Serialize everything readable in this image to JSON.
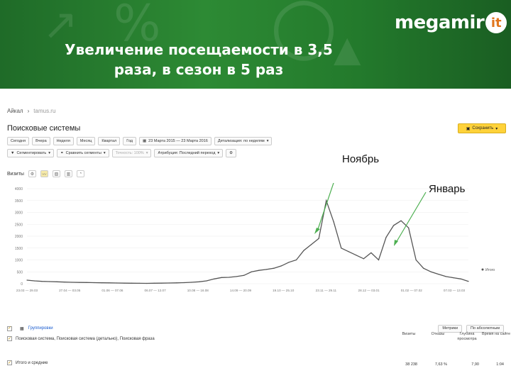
{
  "banner": {
    "title": "Увеличение посещаемости в 3,5 раза, в сезон в 5 раз",
    "logo_text": "megamir",
    "logo_suffix": "it",
    "bg_color": "#2d8a34"
  },
  "breadcrumb": {
    "item1": "Айкал",
    "item2": "tamus.ru"
  },
  "page": {
    "title": "Поисковые системы",
    "save_label": "Сохранить"
  },
  "toolbar1": {
    "periods": [
      "Сегодня",
      "Вчера",
      "Неделя",
      "Месяц",
      "Квартал",
      "Год"
    ],
    "date_range": "23 Марта 2015 — 23 Марта 2016",
    "grouping": "Детализация: по неделям"
  },
  "toolbar2": {
    "segment": "Сегментировать",
    "compare": "Сравнить сегменты",
    "accuracy": "Точность: 100%",
    "attribution": "Атрибуция: Последний переход"
  },
  "chart_header": {
    "label": "Визиты"
  },
  "chart_data": {
    "type": "line",
    "ylim": [
      0,
      4000
    ],
    "yticks": [
      "4000",
      "3500",
      "3000",
      "2500",
      "2000",
      "1500",
      "1000",
      "500",
      "0"
    ],
    "xticks": [
      "23.03 — 29.03",
      "27.04 — 03.05",
      "01.06 — 07.06",
      "06.07 — 12.07",
      "10.08 — 16.08",
      "14.09 — 20.09",
      "19.10 — 25.10",
      "23.11 — 29.11",
      "28.12 — 03.01",
      "01.02 — 07.02",
      "07.03 — 13.03"
    ],
    "series": [
      {
        "name": "Итого",
        "color": "#555555",
        "values": [
          150,
          120,
          100,
          90,
          80,
          70,
          60,
          55,
          50,
          45,
          40,
          35,
          30,
          25,
          20,
          18,
          15,
          20,
          25,
          30,
          35,
          45,
          60,
          80,
          120,
          200,
          260,
          270,
          300,
          350,
          500,
          560,
          600,
          650,
          750,
          900,
          1000,
          1400,
          1650,
          1900,
          3500,
          2600,
          1500,
          1350,
          1200,
          1050,
          1300,
          1000,
          1950,
          2450,
          2650,
          2350,
          1000,
          650,
          500,
          400,
          300,
          250,
          200,
          100
        ]
      }
    ]
  },
  "annotations": {
    "november": "Ноябрь",
    "january": "Январь"
  },
  "table": {
    "mode_label": "Метрики",
    "view_label": "По абсолютным",
    "group_label": "Группировки",
    "rows": [
      "Поисковая система, Поисковая система (детально), Поисковая фраза",
      "Итого и средние"
    ],
    "columns": [
      "Визиты",
      "Отказы",
      "Глубина просмотра",
      "Время на сайте"
    ],
    "totals": [
      "38 238",
      "7,63 %",
      "7,90",
      "1:04"
    ]
  }
}
